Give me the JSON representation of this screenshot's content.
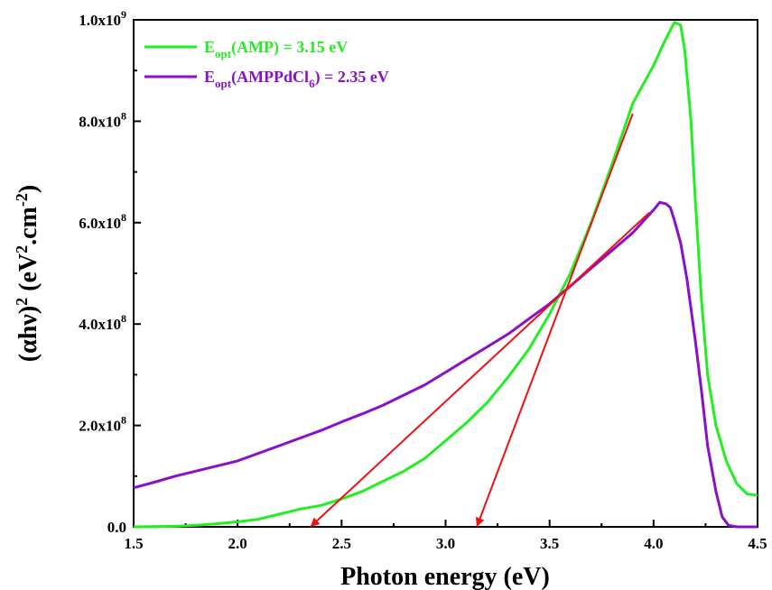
{
  "chart_data": {
    "type": "line",
    "xlabel": "Photon energy (eV)",
    "ylabel": {
      "prefix": "(αhν)",
      "power": "2",
      "unit_open": " (eV",
      "unit_power": "2",
      "unit_mid": ".cm",
      "unit_power2": "-2",
      "unit_close": ")"
    },
    "xlim": [
      1.5,
      4.5
    ],
    "ylim": [
      0,
      1000000000.0
    ],
    "x_ticks": [
      {
        "value": 1.5,
        "label": "1.5"
      },
      {
        "value": 2.0,
        "label": "2.0"
      },
      {
        "value": 2.5,
        "label": "2.5"
      },
      {
        "value": 3.0,
        "label": "3.0"
      },
      {
        "value": 3.5,
        "label": "3.5"
      },
      {
        "value": 4.0,
        "label": "4.0"
      },
      {
        "value": 4.5,
        "label": "4.5"
      }
    ],
    "y_ticks": [
      {
        "value": 0,
        "label": "0.0",
        "mantissa": "0.0",
        "exp": ""
      },
      {
        "value": 200000000.0,
        "label": "2.0x10^8",
        "mantissa": "2.0x10",
        "exp": "8"
      },
      {
        "value": 400000000.0,
        "label": "4.0x10^8",
        "mantissa": "4.0x10",
        "exp": "8"
      },
      {
        "value": 600000000.0,
        "label": "6.0x10^8",
        "mantissa": "6.0x10",
        "exp": "8"
      },
      {
        "value": 800000000.0,
        "label": "8.0x10^8",
        "mantissa": "8.0x10",
        "exp": "8"
      },
      {
        "value": 1000000000.0,
        "label": "1.0x10^9",
        "mantissa": "1.0x10",
        "exp": "9"
      }
    ],
    "legend_position": "top-left",
    "grid": false,
    "series": [
      {
        "name": "Eopt(AMP) = 3.15 eV",
        "legend": {
          "main": "E",
          "sub": "opt",
          "rest": "(AMP) = 3.15 eV",
          "sub2": "",
          "tail": ""
        },
        "color": "#22ee22",
        "points": [
          [
            1.5,
            0
          ],
          [
            1.7,
            1000000.0
          ],
          [
            1.8,
            3000000.0
          ],
          [
            1.9,
            6000000.0
          ],
          [
            2.0,
            10000000.0
          ],
          [
            2.1,
            15000000.0
          ],
          [
            2.2,
            25000000.0
          ],
          [
            2.3,
            35000000.0
          ],
          [
            2.4,
            42000000.0
          ],
          [
            2.5,
            55000000.0
          ],
          [
            2.6,
            70000000.0
          ],
          [
            2.7,
            90000000.0
          ],
          [
            2.8,
            110000000.0
          ],
          [
            2.9,
            135000000.0
          ],
          [
            3.0,
            170000000.0
          ],
          [
            3.1,
            205000000.0
          ],
          [
            3.2,
            245000000.0
          ],
          [
            3.3,
            295000000.0
          ],
          [
            3.4,
            350000000.0
          ],
          [
            3.5,
            420000000.0
          ],
          [
            3.6,
            500000000.0
          ],
          [
            3.7,
            600000000.0
          ],
          [
            3.8,
            715000000.0
          ],
          [
            3.9,
            835000000.0
          ],
          [
            4.0,
            910000000.0
          ],
          [
            4.05,
            955000000.0
          ],
          [
            4.1,
            995000000.0
          ],
          [
            4.13,
            990000000.0
          ],
          [
            4.15,
            940000000.0
          ],
          [
            4.18,
            800000000.0
          ],
          [
            4.2,
            650000000.0
          ],
          [
            4.23,
            450000000.0
          ],
          [
            4.26,
            300000000.0
          ],
          [
            4.3,
            200000000.0
          ],
          [
            4.35,
            130000000.0
          ],
          [
            4.4,
            85000000.0
          ],
          [
            4.45,
            65000000.0
          ],
          [
            4.5,
            62000000.0
          ]
        ]
      },
      {
        "name": "Eopt(AMPPdCl6) = 2.35 eV",
        "legend": {
          "main": "E",
          "sub": "opt",
          "rest": "(AMPPdCl",
          "sub2": "6",
          "tail": ") = 2.35 eV"
        },
        "color": "#8a0fc8",
        "points": [
          [
            1.5,
            77000000.0
          ],
          [
            1.6,
            88000000.0
          ],
          [
            1.7,
            100000000.0
          ],
          [
            1.8,
            110000000.0
          ],
          [
            1.9,
            120000000.0
          ],
          [
            2.0,
            130000000.0
          ],
          [
            2.1,
            145000000.0
          ],
          [
            2.2,
            160000000.0
          ],
          [
            2.3,
            175000000.0
          ],
          [
            2.4,
            190000000.0
          ],
          [
            2.5,
            207000000.0
          ],
          [
            2.6,
            223000000.0
          ],
          [
            2.7,
            240000000.0
          ],
          [
            2.8,
            260000000.0
          ],
          [
            2.9,
            280000000.0
          ],
          [
            3.0,
            305000000.0
          ],
          [
            3.1,
            330000000.0
          ],
          [
            3.2,
            355000000.0
          ],
          [
            3.3,
            380000000.0
          ],
          [
            3.4,
            410000000.0
          ],
          [
            3.5,
            440000000.0
          ],
          [
            3.6,
            475000000.0
          ],
          [
            3.7,
            510000000.0
          ],
          [
            3.8,
            545000000.0
          ],
          [
            3.9,
            580000000.0
          ],
          [
            4.0,
            625000000.0
          ],
          [
            4.03,
            640000000.0
          ],
          [
            4.06,
            637000000.0
          ],
          [
            4.08,
            630000000.0
          ],
          [
            4.1,
            605000000.0
          ],
          [
            4.13,
            560000000.0
          ],
          [
            4.16,
            490000000.0
          ],
          [
            4.2,
            370000000.0
          ],
          [
            4.23,
            270000000.0
          ],
          [
            4.26,
            160000000.0
          ],
          [
            4.3,
            70000000.0
          ],
          [
            4.33,
            20000000.0
          ],
          [
            4.36,
            3000000.0
          ],
          [
            4.4,
            0
          ],
          [
            4.5,
            0
          ]
        ]
      }
    ],
    "annotations": [
      {
        "type": "tangent-arrow",
        "color": "#ee1111",
        "from": [
          3.9,
          815000000.0
        ],
        "to": [
          3.15,
          0
        ]
      },
      {
        "type": "tangent-arrow",
        "color": "#ee1111",
        "from": [
          3.98,
          620000000.0
        ],
        "to": [
          2.35,
          0
        ]
      }
    ]
  }
}
